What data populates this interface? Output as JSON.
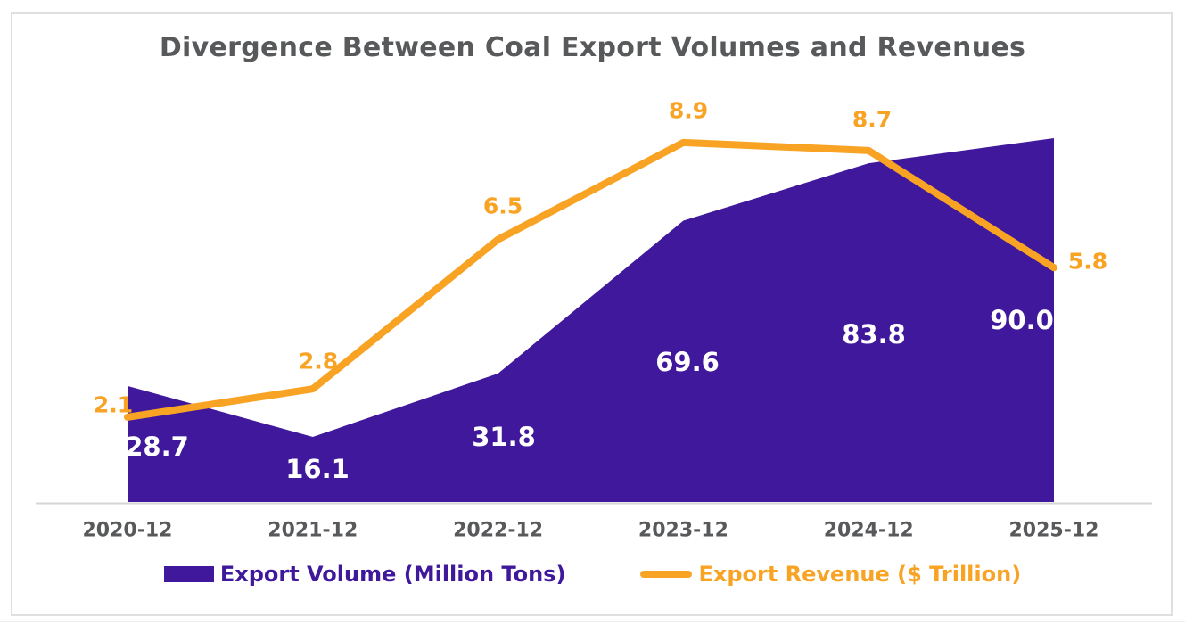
{
  "chart_data": {
    "type": "combo",
    "title": "Divergence Between Coal Export Volumes and Revenues",
    "categories": [
      "2020-12",
      "2021-12",
      "2022-12",
      "2023-12",
      "2024-12",
      "2025-12"
    ],
    "series": [
      {
        "name": "Export Volume (Million Tons)",
        "type": "area",
        "color": "#40189B",
        "label_color": "#FFFFFF",
        "values": [
          28.7,
          16.1,
          31.8,
          69.6,
          83.8,
          90.0
        ]
      },
      {
        "name": "Export Revenue ($ Trillion)",
        "type": "line",
        "color": "#F8A323",
        "label_color": "#F8A323",
        "values": [
          2.1,
          2.8,
          6.5,
          8.9,
          8.7,
          5.8
        ]
      }
    ],
    "xlabel": "",
    "ylabel": "",
    "grid": false,
    "y_axis_visible": false,
    "legend_position": "bottom",
    "x_tick_color": "#58595B"
  },
  "colors": {
    "title_text": "#58595B",
    "axis_line": "#D6D6D6",
    "card_border": "#DFDFDF",
    "background": "#FFFFFF"
  }
}
